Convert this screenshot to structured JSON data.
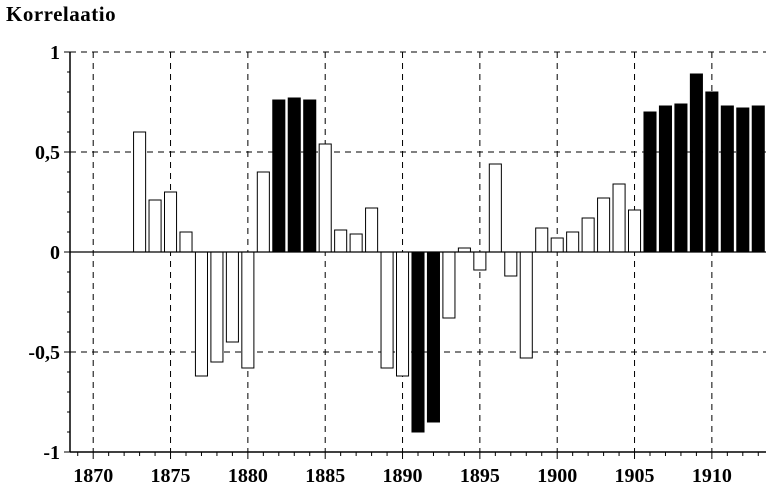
{
  "chart_data": {
    "type": "bar",
    "title": "",
    "ylabel": "Korrelaatio",
    "xlabel": "",
    "xlim": [
      1868.5,
      1913.5
    ],
    "ylim": [
      -1,
      1
    ],
    "x_ticks": [
      "1870",
      "1875",
      "1880",
      "1885",
      "1890",
      "1895",
      "1900",
      "1905",
      "1910"
    ],
    "y_ticks": [
      "1",
      "0,5",
      "0",
      "-0,5",
      "-1"
    ],
    "grid": true,
    "series": [
      {
        "x": [
          1873,
          1874,
          1875,
          1876,
          1877,
          1878,
          1879,
          1880,
          1881,
          1882,
          1883,
          1884,
          1885,
          1886,
          1887,
          1888,
          1889,
          1890,
          1891,
          1892,
          1893,
          1894,
          1895,
          1896,
          1897,
          1898,
          1899,
          1900,
          1901,
          1902,
          1903,
          1904,
          1905,
          1906,
          1907,
          1908,
          1909,
          1910,
          1911,
          1912,
          1913
        ],
        "values": [
          0.6,
          0.26,
          0.3,
          0.1,
          -0.62,
          -0.55,
          -0.45,
          -0.58,
          0.4,
          0.76,
          0.77,
          0.76,
          0.54,
          0.11,
          0.09,
          0.22,
          -0.58,
          -0.62,
          -0.9,
          -0.85,
          -0.33,
          0.02,
          -0.09,
          0.44,
          -0.12,
          -0.53,
          0.12,
          0.07,
          0.1,
          0.17,
          0.27,
          0.34,
          0.21,
          0.7,
          0.73,
          0.74,
          0.89,
          0.8,
          0.73,
          0.72,
          0.73
        ],
        "highlight": [
          false,
          false,
          false,
          false,
          false,
          false,
          false,
          false,
          false,
          true,
          true,
          true,
          false,
          false,
          false,
          false,
          false,
          false,
          true,
          true,
          false,
          false,
          false,
          false,
          false,
          false,
          false,
          false,
          false,
          false,
          false,
          false,
          false,
          true,
          true,
          true,
          true,
          true,
          true,
          true,
          true
        ]
      }
    ],
    "colors": {
      "filled": "#000000",
      "hollow": "#ffffff",
      "stroke": "#000000"
    }
  }
}
